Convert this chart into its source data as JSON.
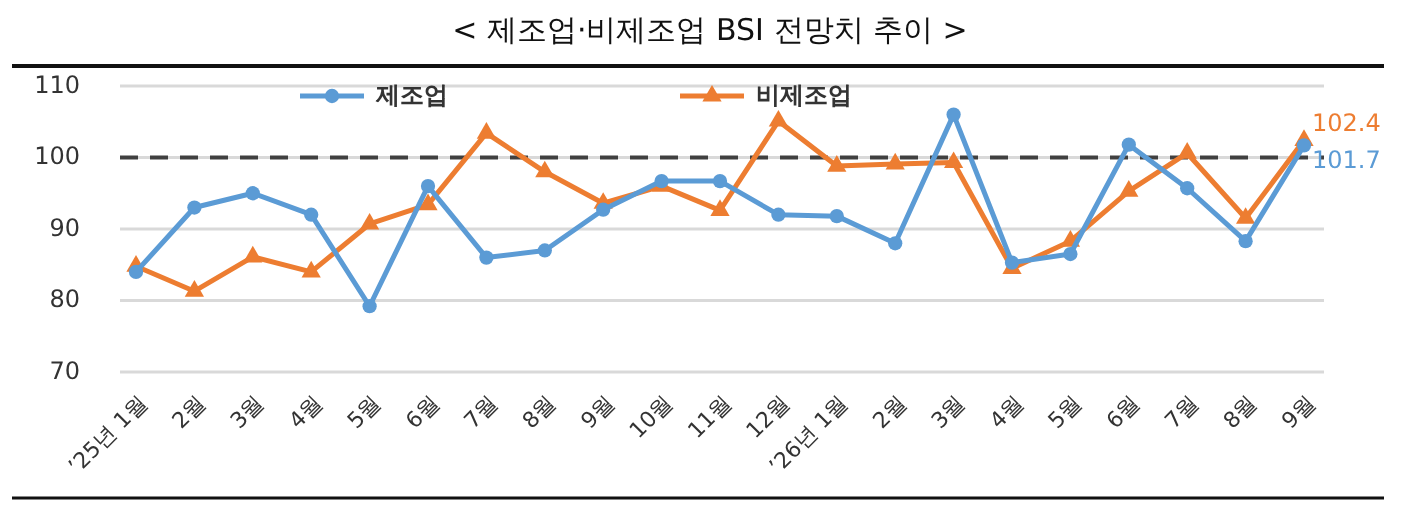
{
  "chart_data": {
    "type": "line",
    "title": "< 제조업·비제조업 BSI 전망치 추이 >",
    "categories": [
      "’25년 1월",
      "2월",
      "3월",
      "4월",
      "5월",
      "6월",
      "7월",
      "8월",
      "9월",
      "10월",
      "11월",
      "12월",
      "’26년 1월",
      "2월",
      "3월",
      "4월",
      "5월",
      "6월",
      "7월",
      "8월",
      "9월"
    ],
    "series": [
      {
        "name": "제조업",
        "color": "#5b9bd5",
        "marker": "circle",
        "values": [
          84,
          93,
          95,
          92,
          79.2,
          96,
          86,
          87,
          92.7,
          96.7,
          96.7,
          92,
          91.8,
          88,
          106,
          85.3,
          86.5,
          101.8,
          95.7,
          88.3,
          101.7
        ],
        "value_labels": [
          null,
          null,
          null,
          null,
          null,
          null,
          null,
          null,
          null,
          null,
          null,
          null,
          null,
          null,
          null,
          null,
          null,
          null,
          null,
          null,
          "101.7"
        ]
      },
      {
        "name": "비제조업",
        "color": "#ed7d31",
        "marker": "triangle",
        "values": [
          84.8,
          81.3,
          86.1,
          84,
          90.7,
          93.4,
          103.4,
          98,
          93.6,
          96,
          92.6,
          105.1,
          98.8,
          99.1,
          99.3,
          84.5,
          88.3,
          95.3,
          100.6,
          91.5,
          102.4
        ],
        "value_labels": [
          null,
          null,
          null,
          null,
          null,
          null,
          null,
          null,
          null,
          null,
          null,
          null,
          null,
          null,
          null,
          null,
          null,
          null,
          null,
          null,
          "102.4"
        ]
      }
    ],
    "ylim": [
      70,
      110
    ],
    "yticks": [
      70,
      80,
      90,
      100,
      110
    ],
    "grid": "y",
    "legend": "top",
    "ref_lines": [
      {
        "axis": "y",
        "value": 100,
        "line_style": "dashed",
        "color": "#404040"
      }
    ]
  }
}
